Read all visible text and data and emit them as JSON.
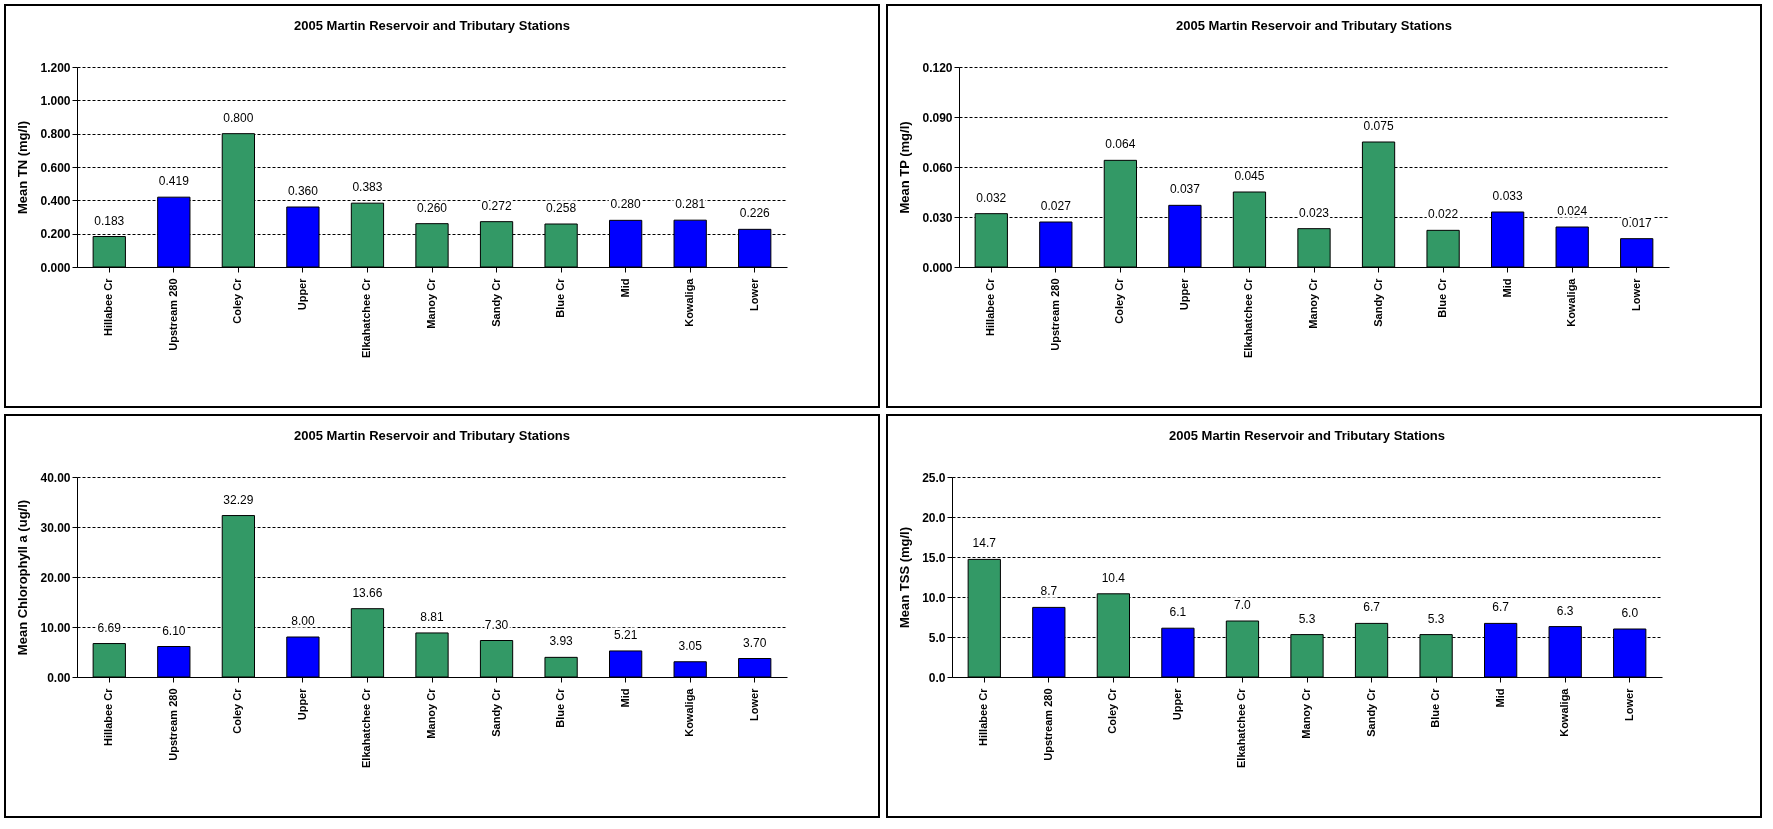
{
  "chart_data": [
    {
      "type": "bar",
      "title": "2005 Martin  Reservoir and Tributary Stations",
      "ylabel": "Mean TN (mg/l)",
      "categories": [
        "Hillabee Cr",
        "Upstream 280",
        "Coley Cr",
        "Upper",
        "Elkahatchee Cr",
        "Manoy Cr",
        "Sandy Cr",
        "Blue Cr",
        "Mid",
        "Kowaliga",
        "Lower"
      ],
      "values": [
        0.183,
        0.419,
        0.8,
        0.36,
        0.383,
        0.26,
        0.272,
        0.258,
        0.28,
        0.281,
        0.226
      ],
      "value_labels": [
        "0.183",
        "0.419",
        "0.800",
        "0.360",
        "0.383",
        "0.260",
        "0.272",
        "0.258",
        "0.280",
        "0.281",
        "0.226"
      ],
      "colors": [
        "#339966",
        "#0000ff",
        "#339966",
        "#0000ff",
        "#339966",
        "#339966",
        "#339966",
        "#339966",
        "#0000ff",
        "#0000ff",
        "#0000ff"
      ],
      "ylim": [
        0,
        1.2
      ],
      "yticks": [
        {
          "value": 0,
          "label": "0.000"
        },
        {
          "value": 0.2,
          "label": "0.200"
        },
        {
          "value": 0.4,
          "label": "0.400"
        },
        {
          "value": 0.6,
          "label": "0.600"
        },
        {
          "value": 0.8,
          "label": "0.800"
        },
        {
          "value": 1,
          "label": "1.000"
        },
        {
          "value": 1.2,
          "label": "1.200"
        }
      ],
      "grid": "y"
    },
    {
      "type": "bar",
      "title": "2005 Martin Reservoir and Tributary Stations",
      "ylabel": "Mean TP (mg/l)",
      "categories": [
        "Hillabee Cr",
        "Upstream 280",
        "Coley Cr",
        "Upper",
        "Elkahatchee Cr",
        "Manoy Cr",
        "Sandy Cr",
        "Blue Cr",
        "Mid",
        "Kowaliga",
        "Lower"
      ],
      "values": [
        0.032,
        0.027,
        0.064,
        0.037,
        0.045,
        0.023,
        0.075,
        0.022,
        0.033,
        0.024,
        0.017
      ],
      "value_labels": [
        "0.032",
        "0.027",
        "0.064",
        "0.037",
        "0.045",
        "0.023",
        "0.075",
        "0.022",
        "0.033",
        "0.024",
        "0.017"
      ],
      "colors": [
        "#339966",
        "#0000ff",
        "#339966",
        "#0000ff",
        "#339966",
        "#339966",
        "#339966",
        "#339966",
        "#0000ff",
        "#0000ff",
        "#0000ff"
      ],
      "ylim": [
        0,
        0.12
      ],
      "yticks": [
        {
          "value": 0,
          "label": "0.000"
        },
        {
          "value": 0.03,
          "label": "0.030"
        },
        {
          "value": 0.06,
          "label": "0.060"
        },
        {
          "value": 0.09,
          "label": "0.090"
        },
        {
          "value": 0.12,
          "label": "0.120"
        }
      ],
      "grid": "y"
    },
    {
      "type": "bar",
      "title": "2005 Martin Reservoir and Tributary Stations",
      "ylabel": "Mean Chlorophyll a (ug/l)",
      "categories": [
        "Hillabee Cr",
        "Upstream 280",
        "Coley Cr",
        "Upper",
        "Elkahatchee Cr",
        "Manoy Cr",
        "Sandy Cr",
        "Blue Cr",
        "Mid",
        "Kowaliga",
        "Lower"
      ],
      "values": [
        6.69,
        6.1,
        32.29,
        8,
        13.66,
        8.81,
        7.3,
        3.93,
        5.21,
        3.05,
        3.7
      ],
      "value_labels": [
        "6.69",
        "6.10",
        "32.29",
        "8.00",
        "13.66",
        "8.81",
        "7.30",
        "3.93",
        "5.21",
        "3.05",
        "3.70"
      ],
      "colors": [
        "#339966",
        "#0000ff",
        "#339966",
        "#0000ff",
        "#339966",
        "#339966",
        "#339966",
        "#339966",
        "#0000ff",
        "#0000ff",
        "#0000ff"
      ],
      "ylim": [
        0,
        40
      ],
      "yticks": [
        {
          "value": 0,
          "label": "0.00"
        },
        {
          "value": 10,
          "label": "10.00"
        },
        {
          "value": 20,
          "label": "20.00"
        },
        {
          "value": 30,
          "label": "30.00"
        },
        {
          "value": 40,
          "label": "40.00"
        }
      ],
      "grid": "y"
    },
    {
      "type": "bar",
      "title": "2005 Martin Reservoir and Tributary Stations",
      "ylabel": "Mean TSS (mg/l)",
      "categories": [
        "Hillabee Cr",
        "Upstream 280",
        "Coley Cr",
        "Upper",
        "Elkahatchee Cr",
        "Manoy Cr",
        "Sandy Cr",
        "Blue Cr",
        "Mid",
        "Kowaliga",
        "Lower"
      ],
      "values": [
        14.7,
        8.7,
        10.4,
        6.1,
        7,
        5.3,
        6.7,
        5.3,
        6.7,
        6.3,
        6
      ],
      "value_labels": [
        "14.7",
        "8.7",
        "10.4",
        "6.1",
        "7.0",
        "5.3",
        "6.7",
        "5.3",
        "6.7",
        "6.3",
        "6.0"
      ],
      "colors": [
        "#339966",
        "#0000ff",
        "#339966",
        "#0000ff",
        "#339966",
        "#339966",
        "#339966",
        "#339966",
        "#0000ff",
        "#0000ff",
        "#0000ff"
      ],
      "ylim": [
        0,
        25
      ],
      "yticks": [
        {
          "value": 0,
          "label": "0.0"
        },
        {
          "value": 5,
          "label": "5.0"
        },
        {
          "value": 10,
          "label": "10.0"
        },
        {
          "value": 15,
          "label": "15.0"
        },
        {
          "value": 20,
          "label": "20.0"
        },
        {
          "value": 25,
          "label": "25.0"
        }
      ],
      "grid": "y"
    }
  ]
}
